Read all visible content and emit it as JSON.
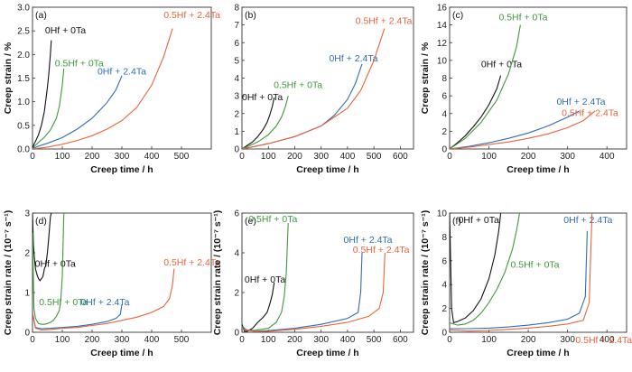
{
  "colors": {
    "black": "#111111",
    "green": "#3f9a3a",
    "blue": "#2f6db5",
    "orange": "#e8643b"
  },
  "chart_data": [
    {
      "type": "line",
      "panel_label": "(a)",
      "xlabel": "Creep time / h",
      "ylabel": "Creep strain / %",
      "xlim": [
        0,
        600
      ],
      "ylim": [
        0,
        3.0
      ],
      "xticks": [
        0,
        100,
        200,
        300,
        400,
        500
      ],
      "yticks": [
        0.0,
        0.5,
        1.0,
        1.5,
        2.0,
        2.5,
        3.0
      ],
      "ytick_labels": [
        "0.0",
        "0.5",
        "1.0",
        "1.5",
        "2.0",
        "2.5",
        "3.0"
      ],
      "series": [
        {
          "name": "0Hf + 0Ta",
          "color": "black",
          "label_pos": [
            42,
            2.45
          ],
          "x": [
            0,
            5,
            10,
            20,
            30,
            40,
            50,
            55,
            60,
            63
          ],
          "y": [
            0,
            0.1,
            0.16,
            0.3,
            0.5,
            0.8,
            1.3,
            1.6,
            2.0,
            2.3
          ]
        },
        {
          "name": "0.5Hf + 0Ta",
          "color": "green",
          "label_pos": [
            75,
            1.75
          ],
          "x": [
            0,
            10,
            20,
            40,
            60,
            80,
            90,
            100,
            105
          ],
          "y": [
            0,
            0.08,
            0.14,
            0.25,
            0.4,
            0.65,
            0.9,
            1.35,
            1.7
          ]
        },
        {
          "name": "0Hf + 2.4Ta",
          "color": "blue",
          "label_pos": [
            218,
            1.58
          ],
          "x": [
            0,
            20,
            50,
            100,
            150,
            200,
            250,
            280,
            300
          ],
          "y": [
            0,
            0.06,
            0.12,
            0.24,
            0.42,
            0.65,
            0.98,
            1.25,
            1.55
          ]
        },
        {
          "name": "0.5Hf + 2.4Ta",
          "color": "orange",
          "label_pos": [
            440,
            2.77
          ],
          "x": [
            0,
            50,
            100,
            150,
            200,
            250,
            300,
            350,
            400,
            440,
            470
          ],
          "y": [
            0,
            0.04,
            0.1,
            0.18,
            0.28,
            0.42,
            0.6,
            0.88,
            1.35,
            1.95,
            2.55
          ]
        }
      ]
    },
    {
      "type": "line",
      "panel_label": "(b)",
      "xlabel": "Creep time / h",
      "ylabel": "",
      "xlim": [
        0,
        650
      ],
      "ylim": [
        0,
        8
      ],
      "xticks": [
        0,
        100,
        200,
        300,
        400,
        500,
        600
      ],
      "yticks": [
        0,
        1,
        2,
        3,
        4,
        5,
        6,
        7,
        8
      ],
      "ytick_labels": [
        "0",
        "1",
        "2",
        "3",
        "4",
        "5",
        "6",
        "7",
        "8"
      ],
      "series": [
        {
          "name": "0Hf + 0Ta",
          "color": "black",
          "label_pos": [
            0,
            2.75
          ],
          "x": [
            0,
            20,
            40,
            60,
            80,
            95,
            105,
            115,
            122
          ],
          "y": [
            0,
            0.2,
            0.4,
            0.7,
            1.1,
            1.5,
            1.9,
            2.4,
            2.9
          ]
        },
        {
          "name": "0.5Hf + 0Ta",
          "color": "green",
          "label_pos": [
            120,
            3.45
          ],
          "x": [
            0,
            30,
            60,
            100,
            130,
            150,
            165,
            175
          ],
          "y": [
            0,
            0.2,
            0.4,
            0.8,
            1.3,
            1.8,
            2.4,
            3.0
          ]
        },
        {
          "name": "0Hf + 2.4Ta",
          "color": "blue",
          "label_pos": [
            330,
            4.95
          ],
          "x": [
            0,
            100,
            200,
            300,
            350,
            400,
            430,
            455
          ],
          "y": [
            0,
            0.3,
            0.7,
            1.3,
            1.9,
            2.8,
            3.7,
            4.8
          ]
        },
        {
          "name": "0.5Hf + 2.4Ta",
          "color": "orange",
          "label_pos": [
            430,
            7.05
          ],
          "x": [
            0,
            100,
            200,
            300,
            400,
            450,
            500,
            540
          ],
          "y": [
            0,
            0.3,
            0.7,
            1.3,
            2.3,
            3.3,
            5.0,
            6.8
          ]
        }
      ]
    },
    {
      "type": "line",
      "panel_label": "(c)",
      "xlabel": "Creep time / h",
      "ylabel": "Creep strain / %",
      "xlim": [
        0,
        450
      ],
      "ylim": [
        0,
        16
      ],
      "xticks": [
        0,
        100,
        200,
        300,
        400
      ],
      "yticks": [
        0,
        2,
        4,
        6,
        8,
        10,
        12,
        14,
        16
      ],
      "ytick_labels": [
        "0",
        "2",
        "4",
        "6",
        "8",
        "10",
        "12",
        "14",
        "16"
      ],
      "series": [
        {
          "name": "0Hf + 0Ta",
          "color": "black",
          "label_pos": [
            80,
            9.2
          ],
          "x": [
            0,
            20,
            40,
            60,
            80,
            100,
            120,
            130
          ],
          "y": [
            0,
            0.7,
            1.5,
            2.5,
            3.6,
            5.0,
            6.8,
            8.3
          ]
        },
        {
          "name": "0.5Hf + 0Ta",
          "color": "green",
          "label_pos": [
            125,
            14.5
          ],
          "x": [
            0,
            40,
            80,
            120,
            150,
            170,
            180
          ],
          "y": [
            0,
            1.2,
            3.0,
            5.5,
            8.5,
            11.5,
            14.0
          ]
        },
        {
          "name": "0Hf + 2.4Ta",
          "color": "blue",
          "label_pos": [
            272,
            5.0
          ],
          "x": [
            0,
            50,
            100,
            150,
            200,
            250,
            300,
            330
          ],
          "y": [
            0,
            0.3,
            0.7,
            1.2,
            1.8,
            2.6,
            3.6,
            4.3
          ]
        },
        {
          "name": "0.5Hf + 2.4Ta",
          "color": "orange",
          "label_pos": [
            285,
            3.7
          ],
          "x": [
            0,
            50,
            100,
            150,
            200,
            250,
            300,
            340,
            370
          ],
          "y": [
            0,
            0.2,
            0.5,
            0.8,
            1.2,
            1.7,
            2.4,
            3.2,
            4.3
          ]
        }
      ]
    },
    {
      "type": "line",
      "panel_label": "(d)",
      "xlabel": "Creep time / h",
      "ylabel": "Creep strain rate / (10⁻⁷ s⁻¹)",
      "xlim": [
        0,
        600
      ],
      "ylim": [
        0,
        3
      ],
      "xticks": [
        0,
        100,
        200,
        300,
        400,
        500
      ],
      "yticks": [
        0,
        1,
        2,
        3
      ],
      "ytick_labels": [
        "0",
        "1",
        "2",
        "3"
      ],
      "series": [
        {
          "name": "0Hf + 0Ta",
          "color": "black",
          "label_pos": [
            8,
            1.65
          ],
          "x": [
            0,
            3,
            6,
            10,
            15,
            20,
            25,
            30,
            35,
            40,
            45,
            50,
            55,
            60,
            63
          ],
          "y": [
            3.0,
            2.2,
            1.9,
            1.6,
            1.45,
            1.35,
            1.3,
            1.35,
            1.4,
            1.6,
            1.7,
            2.0,
            2.4,
            2.9,
            3.0
          ]
        },
        {
          "name": "0.5Hf + 0Ta",
          "color": "green",
          "label_pos": [
            22,
            0.68
          ],
          "x": [
            0,
            5,
            10,
            20,
            30,
            40,
            50,
            60,
            70,
            80,
            90,
            95,
            100,
            105
          ],
          "y": [
            2.5,
            0.6,
            0.35,
            0.22,
            0.2,
            0.2,
            0.22,
            0.25,
            0.3,
            0.4,
            0.55,
            0.8,
            1.4,
            3.0
          ]
        },
        {
          "name": "0Hf + 2.4Ta",
          "color": "blue",
          "label_pos": [
            162,
            0.68
          ],
          "x": [
            0,
            10,
            30,
            60,
            100,
            150,
            200,
            250,
            280,
            295,
            300
          ],
          "y": [
            0.5,
            0.12,
            0.09,
            0.1,
            0.12,
            0.15,
            0.2,
            0.27,
            0.35,
            0.45,
            0.7
          ]
        },
        {
          "name": "0.5Hf + 2.4Ta",
          "color": "orange",
          "label_pos": [
            440,
            1.68
          ],
          "x": [
            0,
            10,
            30,
            60,
            100,
            150,
            200,
            250,
            300,
            350,
            400,
            440,
            460,
            470,
            475
          ],
          "y": [
            0.5,
            0.1,
            0.06,
            0.07,
            0.1,
            0.12,
            0.17,
            0.22,
            0.3,
            0.38,
            0.5,
            0.65,
            0.85,
            1.2,
            1.6
          ]
        }
      ]
    },
    {
      "type": "line",
      "panel_label": "(e)",
      "xlabel": "Creep time / h",
      "ylabel": "Creep strain rate / (10⁻⁷ s⁻¹)",
      "xlim": [
        0,
        650
      ],
      "ylim": [
        0,
        6
      ],
      "xticks": [
        0,
        100,
        200,
        300,
        400,
        500,
        600
      ],
      "yticks": [
        0,
        2,
        4,
        6
      ],
      "ytick_labels": [
        "0",
        "2",
        "4",
        "6"
      ],
      "series": [
        {
          "name": "0Hf + 0Ta",
          "color": "black",
          "label_pos": [
            10,
            2.5
          ],
          "x": [
            0,
            10,
            20,
            40,
            60,
            80,
            95,
            105,
            115,
            122
          ],
          "y": [
            0.4,
            0.05,
            0.05,
            0.2,
            0.5,
            0.75,
            1.0,
            1.4,
            1.9,
            2.5
          ]
        },
        {
          "name": "0.5Hf + 0Ta",
          "color": "green",
          "label_pos": [
            25,
            5.55
          ],
          "x": [
            0,
            20,
            50,
            100,
            130,
            150,
            160,
            168,
            175
          ],
          "y": [
            0.3,
            0.1,
            0.1,
            0.2,
            0.5,
            1.0,
            1.8,
            3.0,
            5.5
          ]
        },
        {
          "name": "0Hf + 2.4Ta",
          "color": "blue",
          "label_pos": [
            385,
            4.5
          ],
          "x": [
            0,
            50,
            100,
            200,
            300,
            400,
            440,
            450,
            455
          ],
          "y": [
            0.15,
            0.05,
            0.08,
            0.2,
            0.4,
            0.7,
            1.0,
            2.0,
            4.0
          ]
        },
        {
          "name": "0.5Hf + 2.4Ta",
          "color": "orange",
          "label_pos": [
            420,
            4.0
          ],
          "x": [
            0,
            50,
            100,
            200,
            300,
            400,
            480,
            520,
            535,
            542
          ],
          "y": [
            0.15,
            0.04,
            0.05,
            0.15,
            0.3,
            0.5,
            0.8,
            1.2,
            2.0,
            4.0
          ]
        }
      ]
    },
    {
      "type": "line",
      "panel_label": "(f)",
      "xlabel": "Creep time / h",
      "ylabel": "Creep strain rate / (10⁻⁷ s⁻¹)",
      "xlim": [
        0,
        450
      ],
      "ylim": [
        0,
        10
      ],
      "xticks": [
        0,
        100,
        200,
        300,
        400
      ],
      "yticks": [
        0,
        2,
        4,
        6,
        8,
        10
      ],
      "ytick_labels": [
        "0",
        "2",
        "4",
        "6",
        "8",
        "10"
      ],
      "series": [
        {
          "name": "0Hf + 0Ta",
          "color": "black",
          "label_pos": [
            22,
            9.15
          ],
          "x": [
            0,
            5,
            10,
            20,
            40,
            60,
            80,
            100,
            115,
            125,
            130
          ],
          "y": [
            10,
            2.0,
            0.8,
            0.9,
            1.2,
            1.8,
            2.8,
            4.5,
            6.5,
            8.5,
            10
          ]
        },
        {
          "name": "0.5Hf + 0Ta",
          "color": "green",
          "label_pos": [
            155,
            5.4
          ],
          "x": [
            0,
            20,
            40,
            60,
            80,
            100,
            120,
            140,
            160,
            170,
            178
          ],
          "y": [
            0.8,
            0.6,
            0.7,
            1.0,
            1.6,
            2.5,
            3.6,
            5.0,
            7.0,
            8.5,
            10
          ]
        },
        {
          "name": "0Hf + 2.4Ta",
          "color": "blue",
          "label_pos": [
            290,
            9.15
          ],
          "x": [
            0,
            50,
            100,
            150,
            200,
            250,
            300,
            330,
            345,
            350
          ],
          "y": [
            0.3,
            0.3,
            0.35,
            0.45,
            0.6,
            0.8,
            1.1,
            1.6,
            3.0,
            8.5
          ]
        },
        {
          "name": "0.5Hf + 2.4Ta",
          "color": "orange",
          "label_pos": [
            320,
            -0.9
          ],
          "x": [
            0,
            50,
            100,
            150,
            200,
            250,
            300,
            340,
            355,
            362
          ],
          "y": [
            0.2,
            0.1,
            0.15,
            0.25,
            0.35,
            0.5,
            0.7,
            1.0,
            2.5,
            10
          ]
        }
      ]
    }
  ]
}
